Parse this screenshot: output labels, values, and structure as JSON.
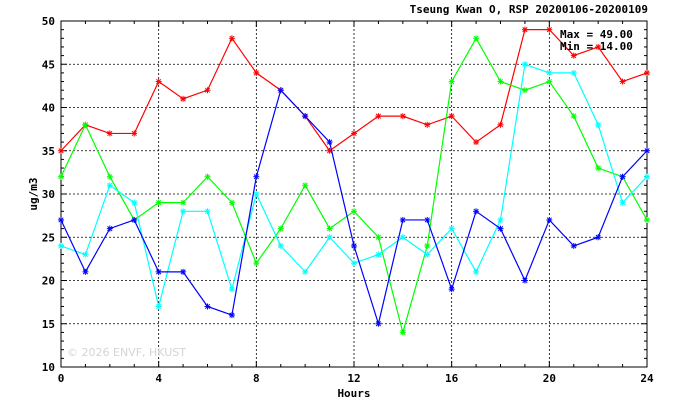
{
  "chart_data": {
    "type": "line",
    "title": "Tseung Kwan O, RSP 20200106-20200109",
    "xlabel": "Hours",
    "ylabel": "ug/m3",
    "xlim": [
      0,
      24
    ],
    "ylim": [
      10,
      50
    ],
    "x_ticks": [
      0,
      4,
      8,
      12,
      16,
      20,
      24
    ],
    "y_ticks": [
      10,
      15,
      20,
      25,
      30,
      35,
      40,
      45,
      50
    ],
    "grid": true,
    "legend": "none",
    "x": [
      0,
      1,
      2,
      3,
      4,
      5,
      6,
      7,
      8,
      9,
      10,
      11,
      12,
      13,
      14,
      15,
      16,
      17,
      18,
      19,
      20,
      21,
      22,
      23,
      24
    ],
    "series": [
      {
        "color": "#ff0000",
        "values": [
          35,
          38,
          37,
          37,
          43,
          41,
          42,
          48,
          44,
          42,
          39,
          35,
          37,
          39,
          39,
          38,
          39,
          36,
          38,
          49,
          49,
          46,
          47,
          43,
          44
        ]
      },
      {
        "color": "#00ff00",
        "values": [
          32,
          38,
          32,
          27,
          29,
          29,
          32,
          29,
          22,
          26,
          31,
          26,
          28,
          25,
          14,
          24,
          43,
          48,
          43,
          42,
          43,
          39,
          33,
          32,
          27
        ]
      },
      {
        "color": "#00ffff",
        "values": [
          24,
          23,
          31,
          29,
          17,
          28,
          28,
          19,
          30,
          24,
          21,
          25,
          22,
          23,
          25,
          23,
          26,
          21,
          27,
          45,
          44,
          44,
          38,
          29,
          32
        ]
      },
      {
        "color": "#0000ff",
        "values": [
          27,
          21,
          26,
          27,
          21,
          21,
          17,
          16,
          32,
          42,
          39,
          36,
          24,
          15,
          27,
          27,
          19,
          28,
          26,
          20,
          27,
          24,
          25,
          32,
          35
        ]
      }
    ],
    "annotations": {
      "max_text": "Max = 49.00",
      "min_text": "Min = 14.00"
    },
    "watermark": "© 2026  ENVF, HKUST"
  }
}
